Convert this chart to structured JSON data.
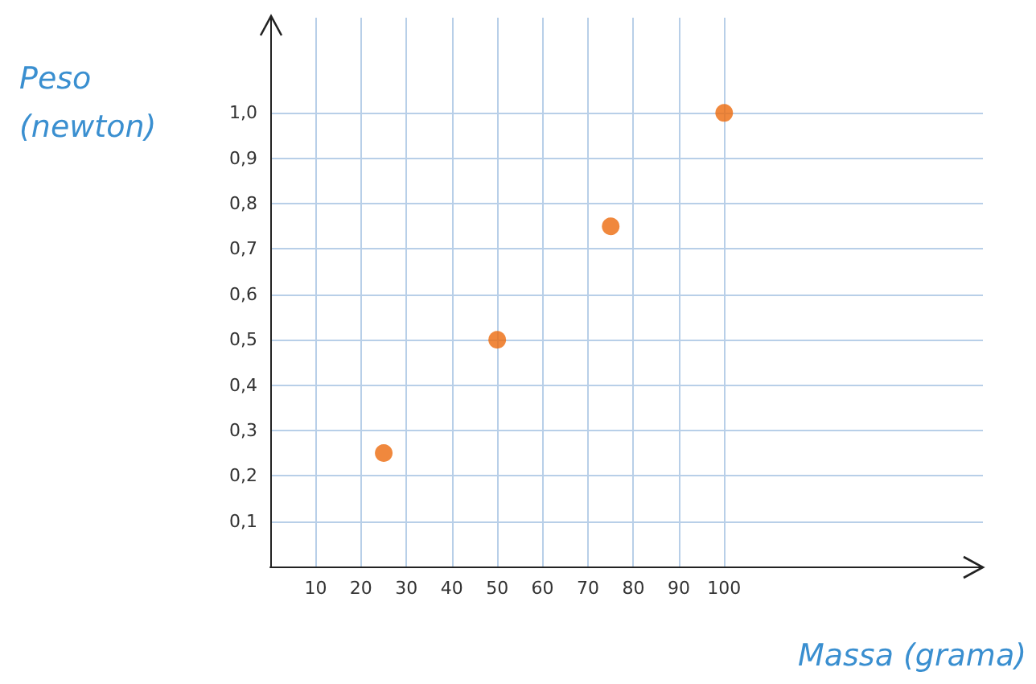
{
  "chart_data": {
    "type": "scatter",
    "xlabel": "Massa (grama)",
    "ylabel": "Peso (newton)",
    "x": [
      25,
      50,
      75,
      100
    ],
    "values": [
      0.25,
      0.5,
      0.75,
      1.0
    ],
    "color": "#ec6a0c",
    "marker": "circle",
    "grid": true,
    "xlim": [
      0,
      157
    ],
    "xticks": [
      10,
      20,
      30,
      40,
      50,
      60,
      70,
      80,
      90,
      100
    ],
    "ylim": [
      0,
      1.21
    ],
    "yticks": [
      {
        "value": 0.1,
        "label": "0,1"
      },
      {
        "value": 0.2,
        "label": "0,2"
      },
      {
        "value": 0.3,
        "label": "0,3"
      },
      {
        "value": 0.4,
        "label": "0,4"
      },
      {
        "value": 0.5,
        "label": "0,5"
      },
      {
        "value": 0.6,
        "label": "0,6"
      },
      {
        "value": 0.7,
        "label": "0,7"
      },
      {
        "value": 0.8,
        "label": "0,8"
      },
      {
        "value": 0.9,
        "label": "0,9"
      },
      {
        "value": 1.0,
        "label": "1,0"
      }
    ]
  }
}
